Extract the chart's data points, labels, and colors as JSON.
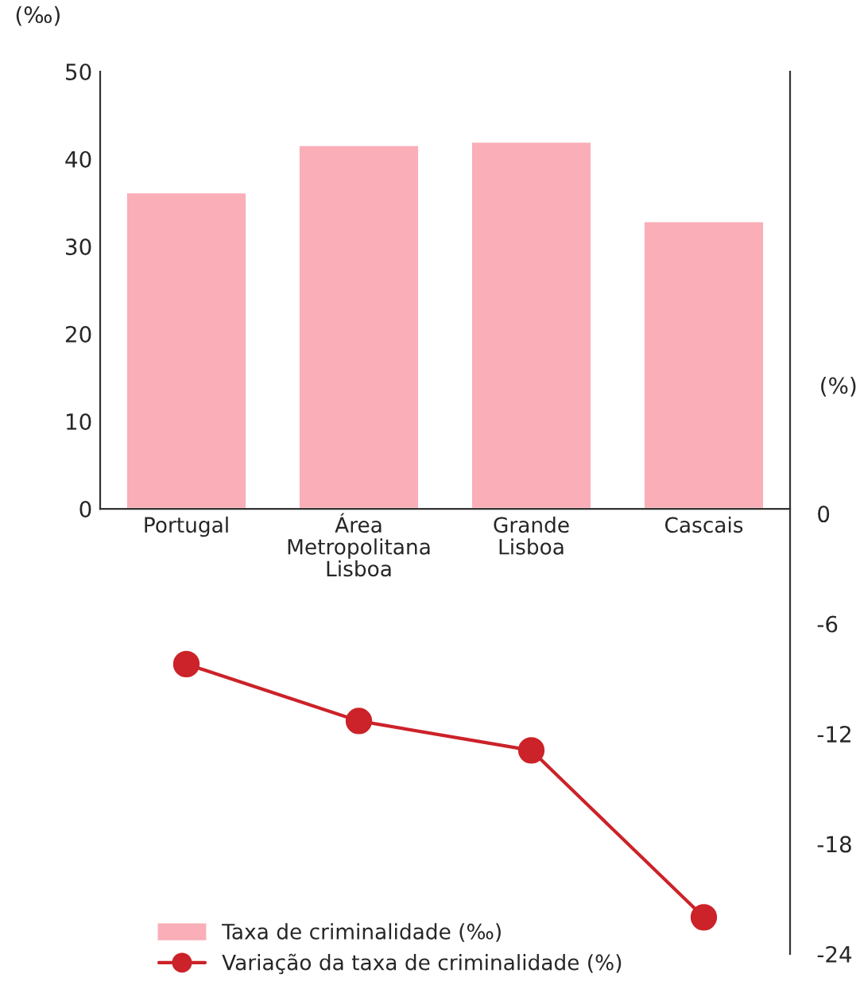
{
  "chart_data": {
    "type": "bar",
    "categories": [
      "Portugal",
      "Área\nMetropolitana\nLisboa",
      "Grande\nLisboa",
      "Cascais"
    ],
    "series": [
      {
        "name": "Taxa de criminalidade (‰)",
        "color": "#f9aeb8",
        "values": [
          36.2,
          41.6,
          42.0,
          32.9
        ]
      },
      {
        "name": "Variação da taxa de criminalidade (%)",
        "type": "line",
        "axis": "y2",
        "color": "#cc2229",
        "values": [
          -8.2,
          -11.3,
          -12.9,
          -22.0
        ]
      }
    ],
    "ylabel": "(‰)",
    "y2label": "(%)",
    "ylim": [
      -50.9,
      50
    ],
    "yticks": [
      0,
      10,
      20,
      30,
      40,
      50
    ],
    "y2lim": [
      -24,
      24.1
    ],
    "y2ticks": [
      0,
      -6,
      -12,
      -18,
      -24
    ],
    "marker": "circle",
    "line_style": "solid",
    "grid": false,
    "legend": "bottom left"
  }
}
